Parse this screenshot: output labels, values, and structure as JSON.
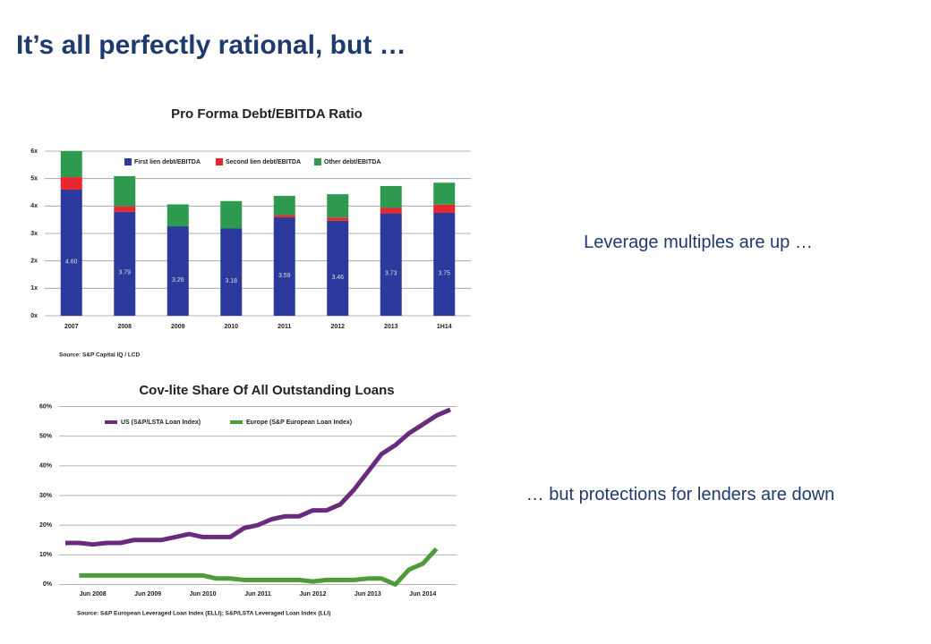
{
  "title": "It’s all perfectly rational, but …",
  "notes": [
    "Leverage multiples are up …",
    "… but protections for lenders are down"
  ],
  "chart_data": [
    {
      "type": "stacked-bar",
      "title": "Pro Forma Debt/EBITDA Ratio",
      "categories": [
        "2007",
        "2008",
        "2009",
        "2010",
        "2011",
        "2012",
        "2013",
        "1H14"
      ],
      "series": [
        {
          "name": "First lien debt/EBITDA",
          "color": "#2b3a9c",
          "values": [
            4.6,
            3.79,
            3.26,
            3.18,
            3.59,
            3.46,
            3.73,
            3.75
          ],
          "value_labels": [
            "4.60",
            "3.79",
            "3.26",
            "3.18",
            "3.59",
            "3.46",
            "3.73",
            "3.75"
          ]
        },
        {
          "name": "Second lien debt/EBITDA",
          "color": "#e8262b",
          "values": [
            0.45,
            0.2,
            0,
            0,
            0.08,
            0.12,
            0.2,
            0.3
          ]
        },
        {
          "name": "Other debt/EBITDA",
          "color": "#2d9a4f",
          "values": [
            0.95,
            1.1,
            0.8,
            1.0,
            0.7,
            0.85,
            0.8,
            0.8
          ]
        }
      ],
      "ylim": [
        0,
        6
      ],
      "yticks": [
        {
          "value": 0,
          "label": "0x"
        },
        {
          "value": 1,
          "label": "1x"
        },
        {
          "value": 2,
          "label": "2x"
        },
        {
          "value": 3,
          "label": "3x"
        },
        {
          "value": 4,
          "label": "4x"
        },
        {
          "value": 5,
          "label": "5x"
        },
        {
          "value": 6,
          "label": "6x"
        }
      ],
      "grid": true,
      "source": "Source: S&P Capital IQ / LCD"
    },
    {
      "type": "line",
      "title": "Cov-lite Share Of All Outstanding Loans",
      "categories": [
        null,
        null,
        "Jun 2008",
        null,
        null,
        null,
        "Jun 2009",
        null,
        null,
        null,
        "Jun 2010",
        null,
        null,
        null,
        "Jun 2011",
        null,
        null,
        null,
        "Jun 2012",
        null,
        null,
        null,
        "Jun 2013",
        null,
        null,
        null,
        "Jun 2014",
        null,
        null
      ],
      "series": [
        {
          "name": "US (S&P/LSTA Loan Index)",
          "color": "#6a2a7e",
          "values": [
            14,
            14,
            13.5,
            14,
            14,
            15,
            15,
            15,
            16,
            17,
            16,
            16,
            16,
            19,
            20,
            22,
            23,
            23,
            25,
            25,
            27,
            32,
            38,
            44,
            47,
            51,
            54,
            57,
            59
          ]
        },
        {
          "name": "Europe (S&P European Loan Index)",
          "color": "#4f9a3a",
          "values": [
            null,
            3,
            3,
            3,
            3,
            3,
            3,
            3,
            3,
            3,
            3,
            2,
            2,
            1.5,
            1.5,
            1.5,
            1.5,
            1.5,
            1,
            1.5,
            1.5,
            1.5,
            2,
            2,
            0,
            5,
            7,
            12,
            null
          ]
        }
      ],
      "ylim": [
        -2,
        62
      ],
      "yticks": [
        {
          "value": 0,
          "label": "0%"
        },
        {
          "value": 10,
          "label": "10%"
        },
        {
          "value": 20,
          "label": "20%"
        },
        {
          "value": 30,
          "label": "30%"
        },
        {
          "value": 40,
          "label": "40%"
        },
        {
          "value": 50,
          "label": "50%"
        },
        {
          "value": 60,
          "label": "60%"
        }
      ],
      "grid": true,
      "source": "Source: S&P European Leveraged Loan Index (ELLI); S&P/LSTA Leveraged Loan Index (LLI)"
    }
  ]
}
